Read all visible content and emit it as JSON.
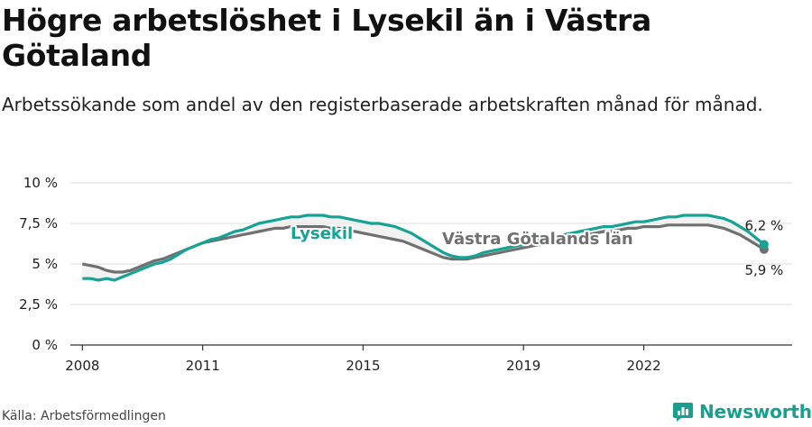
{
  "header": {
    "title": "Högre arbetslöshet i Lysekil än i Västra Götaland",
    "subtitle": "Arbetssökande som andel av den registerbaserade arbetskraften månad för månad."
  },
  "footer": {
    "source": "Källa: Arbetsförmedlingen",
    "brand": "Newsworthy"
  },
  "colors": {
    "lysekil": "#16a394",
    "vg": "#707070",
    "fill": "#ececec",
    "grid": "#dddddd",
    "text": "#222222"
  },
  "chart_data": {
    "type": "line",
    "title": "Högre arbetslöshet i Lysekil än i Västra Götaland",
    "xlabel": "",
    "ylabel": "",
    "xlim": [
      2007.7,
      2025.7
    ],
    "ylim": [
      0,
      10
    ],
    "y_ticks": [
      0,
      2.5,
      5,
      7.5,
      10
    ],
    "y_tick_labels": [
      "0 %",
      "2,5 %",
      "5 %",
      "7,5 %",
      "10 %"
    ],
    "x_ticks": [
      2008,
      2011,
      2015,
      2019,
      2022
    ],
    "x_tick_labels": [
      "2008",
      "2011",
      "2015",
      "2019",
      "2022"
    ],
    "grid": true,
    "series": [
      {
        "name": "Lysekil",
        "label": "Lysekil",
        "end_label": "6,2 %",
        "x": [
          2008.0,
          2008.2,
          2008.4,
          2008.6,
          2008.8,
          2009.0,
          2009.2,
          2009.4,
          2009.6,
          2009.8,
          2010.0,
          2010.2,
          2010.4,
          2010.6,
          2010.8,
          2011.0,
          2011.2,
          2011.4,
          2011.6,
          2011.8,
          2012.0,
          2012.2,
          2012.4,
          2012.6,
          2012.8,
          2013.0,
          2013.2,
          2013.4,
          2013.6,
          2013.8,
          2014.0,
          2014.2,
          2014.4,
          2014.6,
          2014.8,
          2015.0,
          2015.2,
          2015.4,
          2015.6,
          2015.8,
          2016.0,
          2016.2,
          2016.4,
          2016.6,
          2016.8,
          2017.0,
          2017.2,
          2017.4,
          2017.6,
          2017.8,
          2018.0,
          2018.2,
          2018.4,
          2018.6,
          2018.8,
          2019.0,
          2019.2,
          2019.4,
          2019.6,
          2019.8,
          2020.0,
          2020.2,
          2020.4,
          2020.6,
          2020.8,
          2021.0,
          2021.2,
          2021.4,
          2021.6,
          2021.8,
          2022.0,
          2022.2,
          2022.4,
          2022.6,
          2022.8,
          2023.0,
          2023.2,
          2023.4,
          2023.6,
          2023.8,
          2024.0,
          2024.2,
          2024.4,
          2024.6,
          2024.8,
          2025.0
        ],
        "values": [
          4.1,
          4.1,
          4.0,
          4.1,
          4.0,
          4.2,
          4.4,
          4.6,
          4.8,
          5.0,
          5.1,
          5.3,
          5.6,
          5.9,
          6.1,
          6.3,
          6.5,
          6.6,
          6.8,
          7.0,
          7.1,
          7.3,
          7.5,
          7.6,
          7.7,
          7.8,
          7.9,
          7.9,
          8.0,
          8.0,
          8.0,
          7.9,
          7.9,
          7.8,
          7.7,
          7.6,
          7.5,
          7.5,
          7.4,
          7.3,
          7.1,
          6.9,
          6.6,
          6.3,
          6.0,
          5.7,
          5.5,
          5.4,
          5.4,
          5.5,
          5.7,
          5.8,
          5.9,
          6.0,
          6.1,
          6.2,
          6.3,
          6.5,
          6.6,
          6.7,
          6.8,
          6.9,
          7.0,
          7.1,
          7.2,
          7.3,
          7.3,
          7.4,
          7.5,
          7.6,
          7.6,
          7.7,
          7.8,
          7.9,
          7.9,
          8.0,
          8.0,
          8.0,
          8.0,
          7.9,
          7.8,
          7.6,
          7.3,
          7.0,
          6.6,
          6.2
        ]
      },
      {
        "name": "Västra Götalands län",
        "label": "Västra Götalands län",
        "end_label": "5,9 %",
        "x": [
          2008.0,
          2008.2,
          2008.4,
          2008.6,
          2008.8,
          2009.0,
          2009.2,
          2009.4,
          2009.6,
          2009.8,
          2010.0,
          2010.2,
          2010.4,
          2010.6,
          2010.8,
          2011.0,
          2011.2,
          2011.4,
          2011.6,
          2011.8,
          2012.0,
          2012.2,
          2012.4,
          2012.6,
          2012.8,
          2013.0,
          2013.2,
          2013.4,
          2013.6,
          2013.8,
          2014.0,
          2014.2,
          2014.4,
          2014.6,
          2014.8,
          2015.0,
          2015.2,
          2015.4,
          2015.6,
          2015.8,
          2016.0,
          2016.2,
          2016.4,
          2016.6,
          2016.8,
          2017.0,
          2017.2,
          2017.4,
          2017.6,
          2017.8,
          2018.0,
          2018.2,
          2018.4,
          2018.6,
          2018.8,
          2019.0,
          2019.2,
          2019.4,
          2019.6,
          2019.8,
          2020.0,
          2020.2,
          2020.4,
          2020.6,
          2020.8,
          2021.0,
          2021.2,
          2021.4,
          2021.6,
          2021.8,
          2022.0,
          2022.2,
          2022.4,
          2022.6,
          2022.8,
          2023.0,
          2023.2,
          2023.4,
          2023.6,
          2023.8,
          2024.0,
          2024.2,
          2024.4,
          2024.6,
          2024.8,
          2025.0
        ],
        "values": [
          5.0,
          4.9,
          4.8,
          4.6,
          4.5,
          4.5,
          4.6,
          4.8,
          5.0,
          5.2,
          5.3,
          5.5,
          5.7,
          5.9,
          6.1,
          6.3,
          6.4,
          6.5,
          6.6,
          6.7,
          6.8,
          6.9,
          7.0,
          7.1,
          7.2,
          7.2,
          7.3,
          7.3,
          7.3,
          7.3,
          7.3,
          7.2,
          7.2,
          7.1,
          7.0,
          6.9,
          6.8,
          6.7,
          6.6,
          6.5,
          6.4,
          6.2,
          6.0,
          5.8,
          5.6,
          5.4,
          5.3,
          5.3,
          5.3,
          5.4,
          5.5,
          5.6,
          5.7,
          5.8,
          5.9,
          6.0,
          6.1,
          6.2,
          6.3,
          6.4,
          6.5,
          6.6,
          6.7,
          6.8,
          6.9,
          7.0,
          7.0,
          7.1,
          7.2,
          7.2,
          7.3,
          7.3,
          7.3,
          7.4,
          7.4,
          7.4,
          7.4,
          7.4,
          7.4,
          7.3,
          7.2,
          7.0,
          6.8,
          6.5,
          6.2,
          5.9
        ]
      }
    ]
  }
}
